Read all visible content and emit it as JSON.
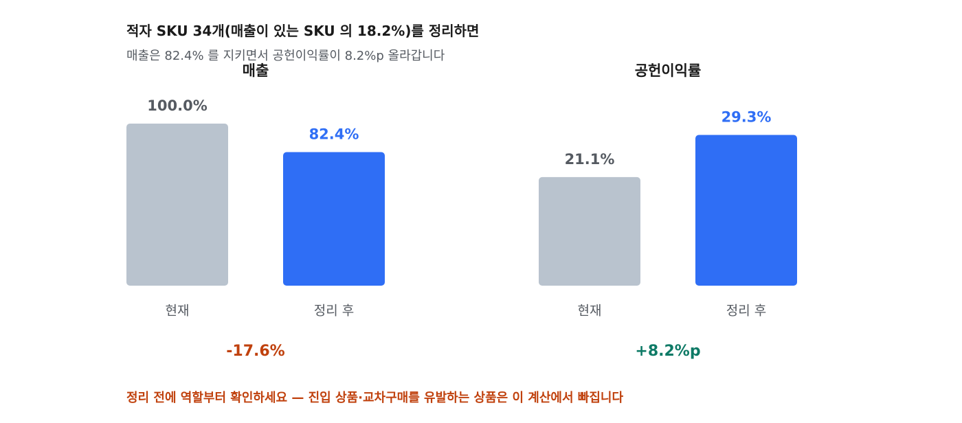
{
  "header": {
    "title": "적자 SKU 34개(매출이 있는 SKU 의 18.2%)를 정리하면",
    "subtitle": "매출은 82.4% 를 지키면서 공헌이익률이 8.2%p 올라갑니다"
  },
  "footnote": "정리 전에 역할부터 확인하세요 — 진입 상품·교차구매를 유발하는 상품은 이 계산에서 빠집니다",
  "colors": {
    "before": "#b9c3ce",
    "after": "#2f6ef5",
    "before_label": "#555a61",
    "after_label": "#2f6ef5",
    "negative": "#c0410d",
    "positive": "#0e7a66"
  },
  "chart_data": [
    {
      "type": "bar",
      "title": "매출",
      "categories": [
        "현재",
        "정리 후"
      ],
      "values": [
        100.0,
        82.4
      ],
      "value_labels": [
        "100.0%",
        "82.4%"
      ],
      "ylim": [
        0,
        100
      ],
      "delta_label": "-17.6%",
      "delta_sign": "negative",
      "grid": false
    },
    {
      "type": "bar",
      "title": "공헌이익률",
      "categories": [
        "현재",
        "정리 후"
      ],
      "values": [
        21.1,
        29.3
      ],
      "value_labels": [
        "21.1%",
        "29.3%"
      ],
      "ylim": [
        0,
        31.5
      ],
      "delta_label": "+8.2%p",
      "delta_sign": "positive",
      "grid": false
    }
  ]
}
